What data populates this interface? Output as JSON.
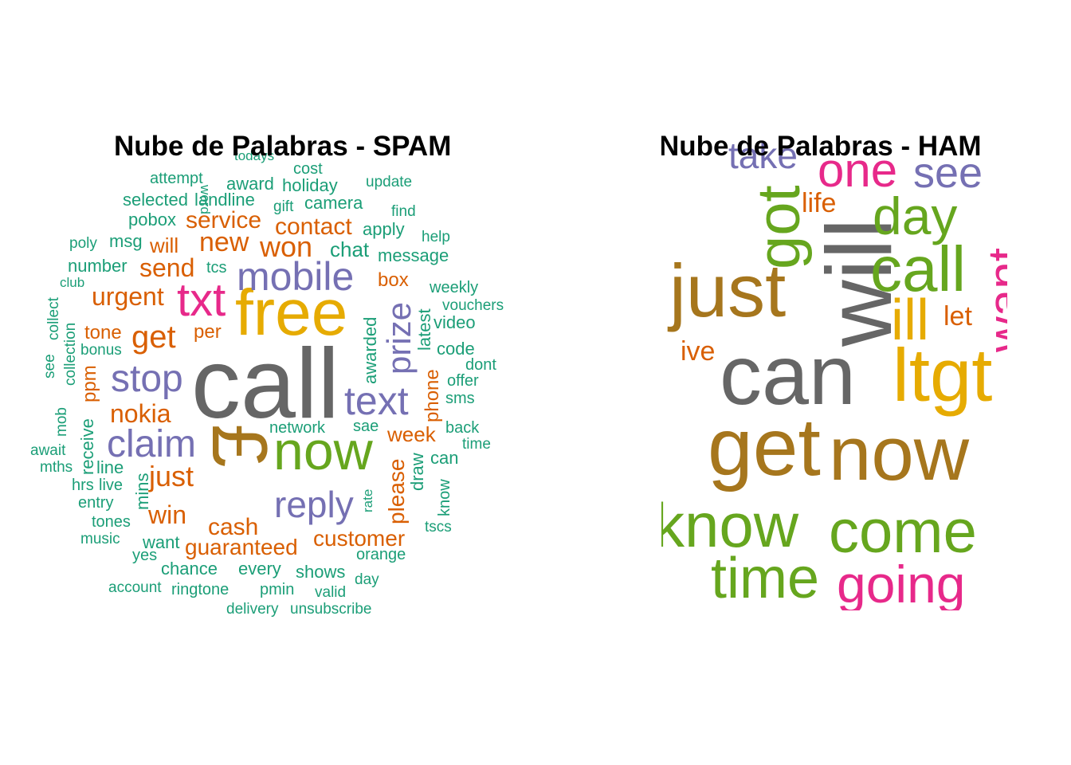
{
  "colors": {
    "teal": "#1b9e77",
    "orange": "#d95f02",
    "purple": "#7570b3",
    "pink": "#e7298a",
    "green": "#66a61e",
    "gold": "#e6ab02",
    "brown": "#a6761d",
    "gray": "#666666"
  },
  "spam_cloud": {
    "title": "Nube de Palabras - SPAM",
    "words": [
      {
        "text": "call",
        "color": "gray"
      },
      {
        "text": "free",
        "color": "gold"
      },
      {
        "text": "now",
        "color": "green"
      },
      {
        "text": "mobile",
        "color": "purple"
      },
      {
        "text": "txt",
        "color": "pink"
      },
      {
        "text": "text",
        "color": "purple"
      },
      {
        "text": "claim",
        "color": "purple"
      },
      {
        "text": "stop",
        "color": "purple"
      },
      {
        "text": "reply",
        "color": "purple"
      },
      {
        "text": "prize",
        "color": "purple"
      },
      {
        "text": "get",
        "color": "orange"
      },
      {
        "text": "won",
        "color": "orange"
      },
      {
        "text": "new",
        "color": "orange"
      },
      {
        "text": "nokia",
        "color": "orange"
      },
      {
        "text": "urgent",
        "color": "orange"
      },
      {
        "text": "send",
        "color": "orange"
      },
      {
        "text": "service",
        "color": "orange"
      },
      {
        "text": "contact",
        "color": "orange"
      },
      {
        "text": "just",
        "color": "orange"
      },
      {
        "text": "win",
        "color": "orange"
      },
      {
        "text": "cash",
        "color": "orange"
      },
      {
        "text": "guaranteed",
        "color": "orange"
      },
      {
        "text": "customer",
        "color": "orange"
      },
      {
        "text": "week",
        "color": "orange"
      },
      {
        "text": "tone",
        "color": "orange"
      },
      {
        "text": "will",
        "color": "orange"
      },
      {
        "text": "box",
        "color": "orange"
      },
      {
        "text": "per",
        "color": "orange"
      },
      {
        "text": "ppm",
        "color": "orange"
      },
      {
        "text": "please",
        "color": "orange"
      },
      {
        "text": "phone",
        "color": "orange"
      },
      {
        "text": "chat",
        "color": "teal"
      },
      {
        "text": "message",
        "color": "teal"
      },
      {
        "text": "apply",
        "color": "teal"
      },
      {
        "text": "camera",
        "color": "teal"
      },
      {
        "text": "holiday",
        "color": "teal"
      },
      {
        "text": "award",
        "color": "teal"
      },
      {
        "text": "cost",
        "color": "teal"
      },
      {
        "text": "update",
        "color": "teal"
      },
      {
        "text": "find",
        "color": "teal"
      },
      {
        "text": "help",
        "color": "teal"
      },
      {
        "text": "weekly",
        "color": "teal"
      },
      {
        "text": "vouchers",
        "color": "teal"
      },
      {
        "text": "video",
        "color": "teal"
      },
      {
        "text": "latest",
        "color": "teal"
      },
      {
        "text": "awarded",
        "color": "teal"
      },
      {
        "text": "code",
        "color": "teal"
      },
      {
        "text": "dont",
        "color": "teal"
      },
      {
        "text": "offer",
        "color": "teal"
      },
      {
        "text": "sms",
        "color": "teal"
      },
      {
        "text": "back",
        "color": "teal"
      },
      {
        "text": "time",
        "color": "teal"
      },
      {
        "text": "can",
        "color": "teal"
      },
      {
        "text": "know",
        "color": "teal"
      },
      {
        "text": "draw",
        "color": "teal"
      },
      {
        "text": "tscs",
        "color": "teal"
      },
      {
        "text": "orange",
        "color": "teal"
      },
      {
        "text": "day",
        "color": "teal"
      },
      {
        "text": "valid",
        "color": "teal"
      },
      {
        "text": "unsubscribe",
        "color": "teal"
      },
      {
        "text": "delivery",
        "color": "teal"
      },
      {
        "text": "pmin",
        "color": "teal"
      },
      {
        "text": "shows",
        "color": "teal"
      },
      {
        "text": "every",
        "color": "teal"
      },
      {
        "text": "ringtone",
        "color": "teal"
      },
      {
        "text": "account",
        "color": "teal"
      },
      {
        "text": "chance",
        "color": "teal"
      },
      {
        "text": "yes",
        "color": "teal"
      },
      {
        "text": "want",
        "color": "teal"
      },
      {
        "text": "music",
        "color": "teal"
      },
      {
        "text": "tones",
        "color": "teal"
      },
      {
        "text": "entry",
        "color": "teal"
      },
      {
        "text": "hrs",
        "color": "teal"
      },
      {
        "text": "live",
        "color": "teal"
      },
      {
        "text": "mins",
        "color": "teal"
      },
      {
        "text": "line",
        "color": "teal"
      },
      {
        "text": "mths",
        "color": "teal"
      },
      {
        "text": "await",
        "color": "teal"
      },
      {
        "text": "receive",
        "color": "teal"
      },
      {
        "text": "mob",
        "color": "teal"
      },
      {
        "text": "see",
        "color": "teal"
      },
      {
        "text": "collection",
        "color": "teal"
      },
      {
        "text": "collect",
        "color": "teal"
      },
      {
        "text": "club",
        "color": "teal"
      },
      {
        "text": "bonus",
        "color": "teal"
      },
      {
        "text": "number",
        "color": "teal"
      },
      {
        "text": "poly",
        "color": "teal"
      },
      {
        "text": "msg",
        "color": "teal"
      },
      {
        "text": "pobox",
        "color": "teal"
      },
      {
        "text": "selected",
        "color": "teal"
      },
      {
        "text": "landline",
        "color": "teal"
      },
      {
        "text": "attempt",
        "color": "teal"
      },
      {
        "text": "gift",
        "color": "teal"
      },
      {
        "text": "todays",
        "color": "teal"
      },
      {
        "text": "word",
        "color": "teal"
      },
      {
        "text": "tcs",
        "color": "teal"
      },
      {
        "text": "network",
        "color": "teal"
      },
      {
        "text": "sae",
        "color": "teal"
      },
      {
        "text": "rate",
        "color": "teal"
      },
      {
        "text": "£",
        "color": "brown"
      }
    ]
  },
  "ham_cloud": {
    "title": "Nube de Palabras - HAM",
    "words": [
      {
        "text": "can",
        "color": "gray"
      },
      {
        "text": "will",
        "color": "gray"
      },
      {
        "text": "get",
        "color": "brown"
      },
      {
        "text": "now",
        "color": "brown"
      },
      {
        "text": "just",
        "color": "brown"
      },
      {
        "text": "ltgt",
        "color": "gold"
      },
      {
        "text": "ill",
        "color": "gold"
      },
      {
        "text": "got",
        "color": "green"
      },
      {
        "text": "call",
        "color": "green"
      },
      {
        "text": "day",
        "color": "green"
      },
      {
        "text": "come",
        "color": "green"
      },
      {
        "text": "know",
        "color": "green"
      },
      {
        "text": "time",
        "color": "green"
      },
      {
        "text": "one",
        "color": "pink"
      },
      {
        "text": "going",
        "color": "pink"
      },
      {
        "text": "want",
        "color": "pink"
      },
      {
        "text": "see",
        "color": "purple"
      },
      {
        "text": "take",
        "color": "purple"
      },
      {
        "text": "life",
        "color": "orange"
      },
      {
        "text": "let",
        "color": "orange"
      },
      {
        "text": "ive",
        "color": "orange"
      }
    ]
  }
}
